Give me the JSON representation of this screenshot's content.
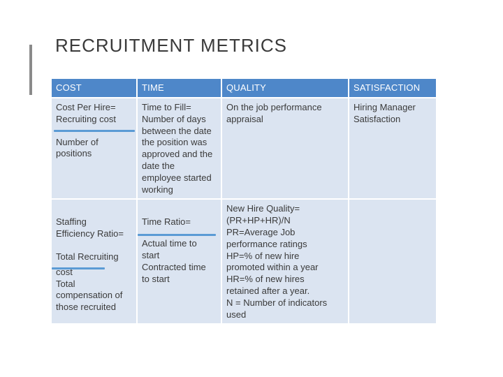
{
  "title": "RECRUITMENT METRICS",
  "headers": [
    "COST",
    "TIME",
    "QUALITY",
    "SATISFACTION"
  ],
  "row1": {
    "cost": [
      "Cost Per Hire=",
      "Recruiting cost",
      "Number of",
      "positions"
    ],
    "time": [
      "Time to Fill=",
      "Number of days",
      "between the date",
      "the position was",
      "approved and the",
      "date the",
      "employee started",
      "working"
    ],
    "quality": [
      "On the job performance",
      "appraisal"
    ],
    "satisfaction": [
      "Hiring Manager",
      "Satisfaction"
    ]
  },
  "row2": {
    "cost": [
      "Staffing",
      "Efficiency Ratio=",
      "Total Recruiting",
      "cost",
      "Total",
      "compensation of",
      "those recruited"
    ],
    "time": [
      "Time Ratio=",
      "Actual time to",
      "start",
      "Contracted time",
      "to start"
    ],
    "quality": [
      "New Hire Quality=",
      "(PR+HP+HR)/N",
      "PR=Average Job",
      "performance ratings",
      "HP=% of new hire",
      "promoted within a year",
      "HR=% of new hires",
      "retained after a year.",
      "N = Number of indicators",
      "used"
    ],
    "satisfaction": []
  },
  "colors": {
    "header_bg": "#4e87c9",
    "cell_bg": "#dbe4f1",
    "accent_rule": "#5b9bd5",
    "title_text": "#3a3a3a"
  }
}
